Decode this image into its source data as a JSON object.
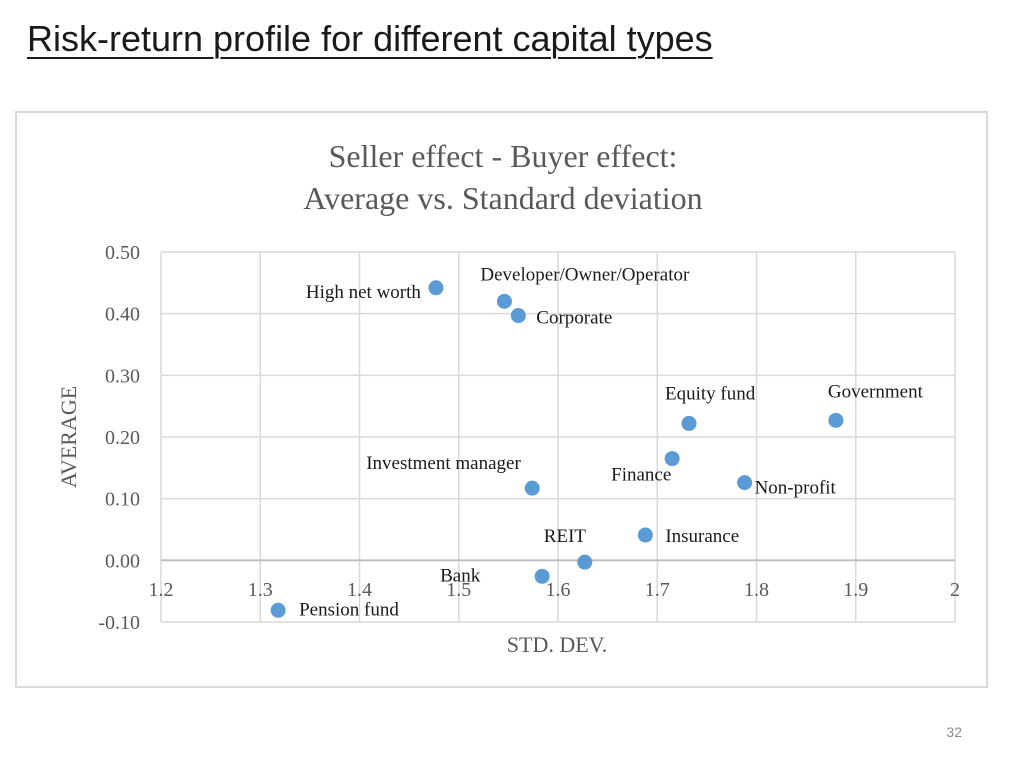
{
  "slide": {
    "title": "Risk-return profile for different capital types",
    "page_number": "32"
  },
  "colors": {
    "marker": "#5b9bd5",
    "gridline": "#d9d9d9",
    "axis_text": "#595959",
    "label_text": "#1a1a1a"
  },
  "chart_data": {
    "type": "scatter",
    "title_lines": [
      "Seller effect - Buyer effect:",
      "Average vs. Standard deviation"
    ],
    "xlabel": "STD. DEV.",
    "ylabel": "AVERAGE",
    "xlim": [
      1.2,
      2.0
    ],
    "ylim": [
      -0.1,
      0.5
    ],
    "x_ticks": [
      "1.2",
      "1.3",
      "1.4",
      "1.5",
      "1.6",
      "1.7",
      "1.8",
      "1.9",
      "2"
    ],
    "y_ticks": [
      "0.50",
      "0.40",
      "0.30",
      "0.20",
      "0.10",
      "0.00",
      "-0.10"
    ],
    "grid": true,
    "legend": "none",
    "points": [
      {
        "label": "High net worth",
        "x": 1.477,
        "y": 0.442
      },
      {
        "label": "Developer/Owner/Operator",
        "x": 1.546,
        "y": 0.42
      },
      {
        "label": "Corporate",
        "x": 1.56,
        "y": 0.397
      },
      {
        "label": "Equity fund",
        "x": 1.732,
        "y": 0.222
      },
      {
        "label": "Government",
        "x": 1.88,
        "y": 0.227
      },
      {
        "label": "Finance",
        "x": 1.715,
        "y": 0.165
      },
      {
        "label": "Investment manager",
        "x": 1.574,
        "y": 0.117
      },
      {
        "label": "Non-profit",
        "x": 1.788,
        "y": 0.126
      },
      {
        "label": "Insurance",
        "x": 1.688,
        "y": 0.041
      },
      {
        "label": "REIT",
        "x": 1.627,
        "y": -0.003
      },
      {
        "label": "Bank",
        "x": 1.584,
        "y": -0.026
      },
      {
        "label": "Pension fund",
        "x": 1.318,
        "y": -0.081
      }
    ]
  }
}
